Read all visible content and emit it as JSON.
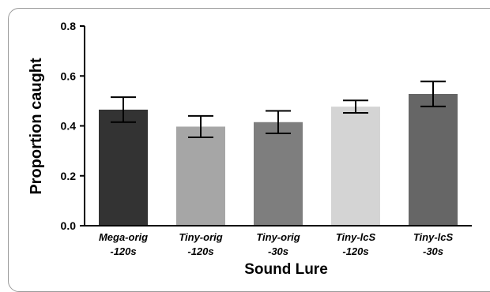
{
  "chart_data": {
    "type": "bar",
    "xlabel": "Sound Lure",
    "ylabel": "Proportion caught",
    "ylim": [
      0,
      0.8
    ],
    "yticks": [
      "0.0",
      "0.2",
      "0.4",
      "0.6",
      "0.8"
    ],
    "grid": false,
    "categories": [
      [
        "Mega-orig",
        "-120s"
      ],
      [
        "Tiny-orig",
        "-120s"
      ],
      [
        "Tiny-orig",
        "-30s"
      ],
      [
        "Tiny-lcS",
        "-120s"
      ],
      [
        "Tiny-lcS",
        "-30s"
      ]
    ],
    "values": [
      0.465,
      0.397,
      0.415,
      0.477,
      0.528
    ],
    "error_bars": [
      0.05,
      0.043,
      0.045,
      0.025,
      0.05
    ],
    "colors": [
      "#333333",
      "#a6a6a6",
      "#7e7e7e",
      "#d4d4d4",
      "#666666"
    ]
  }
}
